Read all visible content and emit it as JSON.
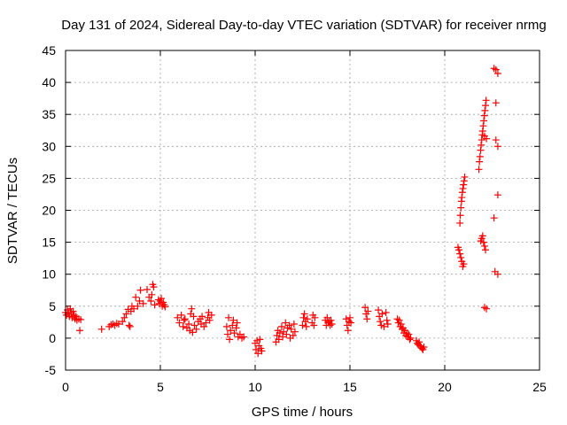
{
  "chart_data": {
    "type": "scatter",
    "title": "Day 131 of 2024, Sidereal Day-to-day VTEC variation (SDTVAR) for receiver nrmg",
    "xlabel": "GPS time / hours",
    "ylabel": "SDTVAR / TECUs",
    "xlim": [
      0,
      25
    ],
    "ylim": [
      -5,
      45
    ],
    "xticks": [
      0,
      5,
      10,
      15,
      20,
      25
    ],
    "yticks": [
      -5,
      0,
      5,
      10,
      15,
      20,
      25,
      30,
      35,
      40,
      45
    ],
    "grid": true,
    "marker": "+",
    "color": "#ff0000",
    "series": [
      {
        "name": "SDTVAR",
        "points": [
          [
            0.0,
            4.0
          ],
          [
            0.05,
            3.6
          ],
          [
            0.1,
            4.4
          ],
          [
            0.15,
            3.8
          ],
          [
            0.2,
            3.4
          ],
          [
            0.25,
            4.6
          ],
          [
            0.3,
            4.0
          ],
          [
            0.35,
            3.2
          ],
          [
            0.4,
            4.2
          ],
          [
            0.45,
            3.6
          ],
          [
            0.5,
            3.0
          ],
          [
            0.55,
            3.4
          ],
          [
            0.6,
            2.8
          ],
          [
            0.7,
            3.0
          ],
          [
            0.8,
            2.9
          ],
          [
            0.75,
            1.2
          ],
          [
            1.9,
            1.4
          ],
          [
            2.3,
            1.8
          ],
          [
            2.4,
            2.1
          ],
          [
            2.5,
            2.2
          ],
          [
            2.6,
            2.0
          ],
          [
            2.7,
            2.3
          ],
          [
            2.8,
            2.2
          ],
          [
            3.0,
            2.6
          ],
          [
            3.1,
            3.2
          ],
          [
            3.2,
            3.8
          ],
          [
            3.3,
            4.5
          ],
          [
            3.35,
            2.0
          ],
          [
            3.4,
            1.8
          ],
          [
            3.45,
            4.2
          ],
          [
            3.5,
            5.0
          ],
          [
            3.6,
            4.6
          ],
          [
            3.7,
            6.4
          ],
          [
            3.8,
            5.0
          ],
          [
            3.9,
            5.8
          ],
          [
            3.95,
            7.5
          ],
          [
            4.1,
            5.4
          ],
          [
            4.3,
            7.6
          ],
          [
            4.4,
            6.4
          ],
          [
            4.5,
            5.8
          ],
          [
            4.55,
            6.8
          ],
          [
            4.6,
            8.4
          ],
          [
            4.65,
            8.0
          ],
          [
            4.7,
            5.2
          ],
          [
            4.9,
            6.0
          ],
          [
            4.95,
            5.4
          ],
          [
            5.0,
            5.8
          ],
          [
            5.05,
            6.2
          ],
          [
            5.1,
            5.0
          ],
          [
            5.15,
            5.6
          ],
          [
            5.2,
            5.2
          ],
          [
            5.25,
            4.9
          ],
          [
            5.9,
            3.2
          ],
          [
            6.0,
            2.4
          ],
          [
            6.1,
            3.6
          ],
          [
            6.2,
            1.8
          ],
          [
            6.25,
            2.8
          ],
          [
            6.3,
            3.0
          ],
          [
            6.4,
            1.6
          ],
          [
            6.5,
            2.2
          ],
          [
            6.55,
            1.2
          ],
          [
            6.6,
            3.8
          ],
          [
            6.65,
            4.6
          ],
          [
            6.7,
            0.9
          ],
          [
            6.75,
            3.4
          ],
          [
            6.8,
            2.0
          ],
          [
            6.9,
            1.4
          ],
          [
            7.0,
            2.6
          ],
          [
            7.1,
            3.0
          ],
          [
            7.15,
            2.2
          ],
          [
            7.2,
            3.4
          ],
          [
            7.3,
            1.8
          ],
          [
            7.4,
            2.4
          ],
          [
            7.5,
            3.2
          ],
          [
            7.55,
            4.0
          ],
          [
            7.6,
            2.8
          ],
          [
            7.7,
            3.6
          ],
          [
            8.5,
            1.8
          ],
          [
            8.55,
            0.6
          ],
          [
            8.6,
            3.2
          ],
          [
            8.65,
            -0.2
          ],
          [
            8.7,
            1.2
          ],
          [
            8.8,
            2.0
          ],
          [
            8.85,
            2.8
          ],
          [
            8.9,
            0.8
          ],
          [
            9.0,
            1.6
          ],
          [
            9.05,
            2.4
          ],
          [
            9.1,
            0.2
          ],
          [
            9.2,
            0.6
          ],
          [
            9.3,
            0.0
          ],
          [
            9.4,
            0.2
          ],
          [
            10.0,
            -0.8
          ],
          [
            10.05,
            -1.8
          ],
          [
            10.1,
            -0.4
          ],
          [
            10.15,
            -2.4
          ],
          [
            10.2,
            -1.2
          ],
          [
            10.25,
            -0.2
          ],
          [
            10.3,
            -1.6
          ],
          [
            10.35,
            -2.0
          ],
          [
            11.1,
            -0.6
          ],
          [
            11.15,
            0.4
          ],
          [
            11.2,
            1.2
          ],
          [
            11.25,
            -0.2
          ],
          [
            11.3,
            0.8
          ],
          [
            11.4,
            1.8
          ],
          [
            11.45,
            0.2
          ],
          [
            11.5,
            1.0
          ],
          [
            11.6,
            2.4
          ],
          [
            11.65,
            0.6
          ],
          [
            11.7,
            1.6
          ],
          [
            11.8,
            2.0
          ],
          [
            11.85,
            0.0
          ],
          [
            11.9,
            1.4
          ],
          [
            12.0,
            0.4
          ],
          [
            12.05,
            2.2
          ],
          [
            12.1,
            1.0
          ],
          [
            12.5,
            2.0
          ],
          [
            12.55,
            3.2
          ],
          [
            12.6,
            3.8
          ],
          [
            12.65,
            2.6
          ],
          [
            12.7,
            1.8
          ],
          [
            12.75,
            3.0
          ],
          [
            13.0,
            2.4
          ],
          [
            13.05,
            3.6
          ],
          [
            13.1,
            2.0
          ],
          [
            13.15,
            3.2
          ],
          [
            13.7,
            2.8
          ],
          [
            13.75,
            2.0
          ],
          [
            13.8,
            3.2
          ],
          [
            13.85,
            2.4
          ],
          [
            13.9,
            2.6
          ],
          [
            13.95,
            2.0
          ],
          [
            14.0,
            2.8
          ],
          [
            14.05,
            2.2
          ],
          [
            14.8,
            3.0
          ],
          [
            14.85,
            2.0
          ],
          [
            14.9,
            1.2
          ],
          [
            14.95,
            2.6
          ],
          [
            15.0,
            3.2
          ],
          [
            15.05,
            2.4
          ],
          [
            15.8,
            4.8
          ],
          [
            15.85,
            3.8
          ],
          [
            15.9,
            3.0
          ],
          [
            15.95,
            4.2
          ],
          [
            16.5,
            4.4
          ],
          [
            16.55,
            3.4
          ],
          [
            16.6,
            2.6
          ],
          [
            16.65,
            2.0
          ],
          [
            16.7,
            3.8
          ],
          [
            16.8,
            1.8
          ],
          [
            16.9,
            4.0
          ],
          [
            16.95,
            2.8
          ],
          [
            17.0,
            2.2
          ],
          [
            17.5,
            3.0
          ],
          [
            17.55,
            2.4
          ],
          [
            17.6,
            2.8
          ],
          [
            17.65,
            1.8
          ],
          [
            17.7,
            2.2
          ],
          [
            17.75,
            1.4
          ],
          [
            17.8,
            1.6
          ],
          [
            17.85,
            0.8
          ],
          [
            17.9,
            1.2
          ],
          [
            17.95,
            0.4
          ],
          [
            18.0,
            0.8
          ],
          [
            18.05,
            0.2
          ],
          [
            18.1,
            0.6
          ],
          [
            18.15,
            -0.2
          ],
          [
            18.2,
            0.0
          ],
          [
            18.5,
            -0.4
          ],
          [
            18.55,
            -0.8
          ],
          [
            18.6,
            -1.0
          ],
          [
            18.65,
            -0.6
          ],
          [
            18.7,
            -1.2
          ],
          [
            18.75,
            -1.4
          ],
          [
            18.8,
            -1.6
          ],
          [
            18.85,
            -1.8
          ],
          [
            18.9,
            -1.4
          ],
          [
            20.7,
            14.2
          ],
          [
            20.75,
            13.8
          ],
          [
            20.8,
            13.2
          ],
          [
            20.85,
            12.6
          ],
          [
            20.9,
            12.0
          ],
          [
            20.95,
            11.2
          ],
          [
            21.0,
            11.6
          ],
          [
            20.8,
            18.0
          ],
          [
            20.82,
            19.2
          ],
          [
            20.85,
            20.4
          ],
          [
            20.88,
            21.4
          ],
          [
            20.9,
            22.0
          ],
          [
            20.93,
            22.8
          ],
          [
            20.96,
            23.4
          ],
          [
            20.99,
            24.0
          ],
          [
            21.02,
            24.6
          ],
          [
            21.05,
            25.2
          ],
          [
            21.9,
            15.2
          ],
          [
            21.95,
            15.6
          ],
          [
            22.0,
            16.0
          ],
          [
            22.05,
            15.0
          ],
          [
            22.1,
            14.4
          ],
          [
            22.15,
            13.8
          ],
          [
            21.8,
            26.4
          ],
          [
            21.83,
            27.6
          ],
          [
            21.86,
            28.4
          ],
          [
            21.89,
            29.4
          ],
          [
            21.92,
            30.2
          ],
          [
            21.95,
            31.0
          ],
          [
            21.98,
            31.8
          ],
          [
            22.0,
            32.4
          ],
          [
            22.03,
            33.2
          ],
          [
            22.06,
            34.0
          ],
          [
            22.09,
            34.8
          ],
          [
            22.12,
            35.6
          ],
          [
            22.15,
            36.4
          ],
          [
            22.18,
            37.2
          ],
          [
            22.1,
            31.6
          ],
          [
            22.2,
            31.2
          ],
          [
            22.1,
            4.8
          ],
          [
            22.2,
            4.6
          ],
          [
            22.6,
            42.2
          ],
          [
            22.7,
            42.0
          ],
          [
            22.8,
            41.4
          ],
          [
            22.7,
            36.8
          ],
          [
            22.7,
            31.0
          ],
          [
            22.8,
            30.0
          ],
          [
            22.8,
            22.4
          ],
          [
            22.6,
            18.8
          ],
          [
            22.65,
            10.4
          ],
          [
            22.8,
            10.0
          ]
        ]
      }
    ]
  }
}
